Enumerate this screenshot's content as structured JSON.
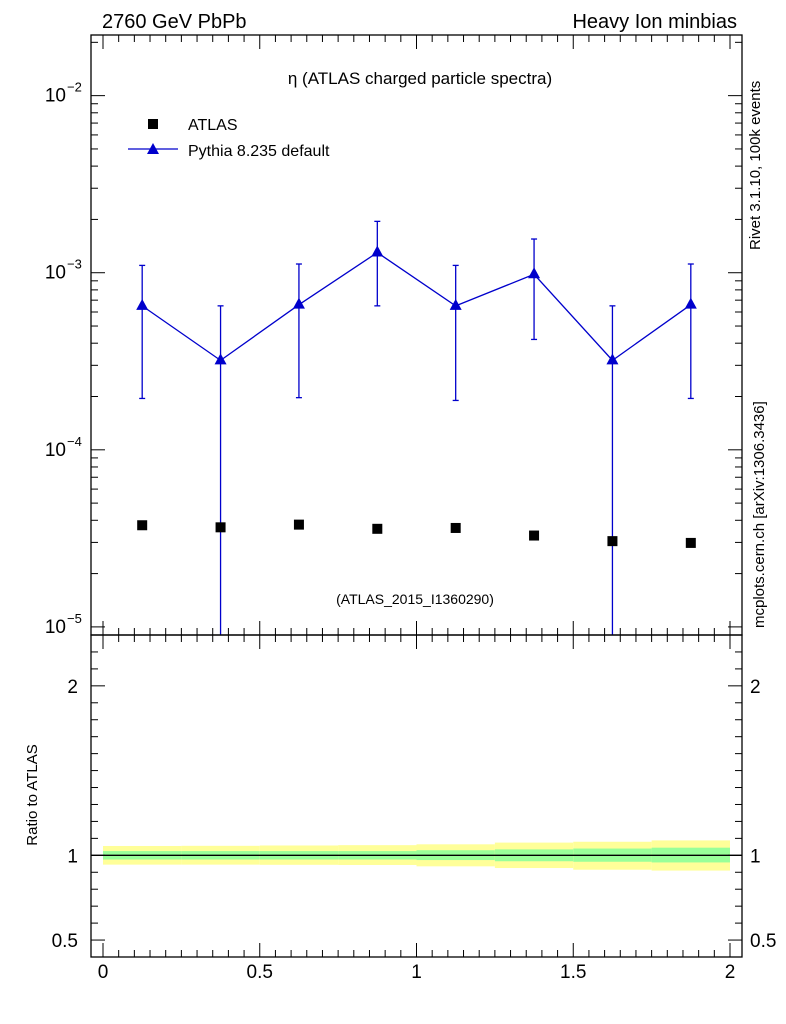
{
  "header": {
    "left": "2760 GeV PbPb",
    "right": "Heavy Ion minbias"
  },
  "side_labels": {
    "rivet": "Rivet 3.1.10,  100k events",
    "mcplots": "mcplots.cern.ch [arXiv:1306.3436]"
  },
  "chart_data": [
    {
      "type": "scatter",
      "title": "η (ATLAS charged particle spectra)",
      "watermark": "(ATLAS_2015_I1360290)",
      "yscale": "log",
      "xlim": [
        0,
        2
      ],
      "ylim": [
        9e-06,
        0.022
      ],
      "legend_position": "top-left",
      "y_tick_labels": [
        "10",
        "10",
        "10",
        "10"
      ],
      "y_tick_exponents": [
        "−5",
        "−4",
        "−3",
        "−2"
      ],
      "y_tick_values": [
        1e-05,
        0.0001,
        0.001,
        0.01
      ],
      "series": [
        {
          "name": "ATLAS",
          "marker": "square",
          "color": "#000000",
          "x": [
            0.125,
            0.375,
            0.625,
            0.875,
            1.125,
            1.375,
            1.625,
            1.875
          ],
          "values": [
            3.75e-05,
            3.65e-05,
            3.78e-05,
            3.58e-05,
            3.62e-05,
            3.28e-05,
            3.05e-05,
            2.98e-05
          ]
        },
        {
          "name": "Pythia 8.235 default",
          "marker": "triangle",
          "color": "#0000cc",
          "x": [
            0.125,
            0.375,
            0.625,
            0.875,
            1.125,
            1.375,
            1.625,
            1.875
          ],
          "values": [
            0.00065,
            0.00032,
            0.00066,
            0.0013,
            0.00065,
            0.00098,
            0.00032,
            0.00066
          ],
          "err_low": [
            0.000195,
            1e-06,
            0.000197,
            0.00065,
            0.00019,
            0.00042,
            1e-06,
            0.000195
          ],
          "err_high": [
            0.0011,
            0.00065,
            0.00112,
            0.00195,
            0.0011,
            0.00155,
            0.00065,
            0.00112
          ]
        }
      ]
    },
    {
      "type": "area",
      "ylabel": "Ratio to ATLAS",
      "ylim": [
        0.4,
        2.3
      ],
      "xlim": [
        0,
        2
      ],
      "y_tick_labels": [
        "0.5",
        "1",
        "2"
      ],
      "y_tick_values": [
        0.5,
        1,
        2
      ],
      "x_tick_labels": [
        "0",
        "0.5",
        "1",
        "1.5",
        "2"
      ],
      "x_tick_values": [
        0,
        0.5,
        1,
        1.5,
        2
      ],
      "reference_line": 1,
      "bands": {
        "bin_edges": [
          0,
          0.25,
          0.5,
          0.75,
          1.0,
          1.25,
          1.5,
          1.75,
          2.0
        ],
        "inner_color": "#99ff99",
        "outer_color": "#ffff99",
        "inner_low": [
          0.975,
          0.975,
          0.975,
          0.975,
          0.972,
          0.965,
          0.962,
          0.958
        ],
        "inner_high": [
          1.025,
          1.025,
          1.025,
          1.025,
          1.03,
          1.035,
          1.04,
          1.045
        ],
        "outer_low": [
          0.945,
          0.945,
          0.944,
          0.943,
          0.935,
          0.925,
          0.915,
          0.91
        ],
        "outer_high": [
          1.055,
          1.056,
          1.058,
          1.06,
          1.065,
          1.075,
          1.08,
          1.088
        ]
      }
    }
  ]
}
